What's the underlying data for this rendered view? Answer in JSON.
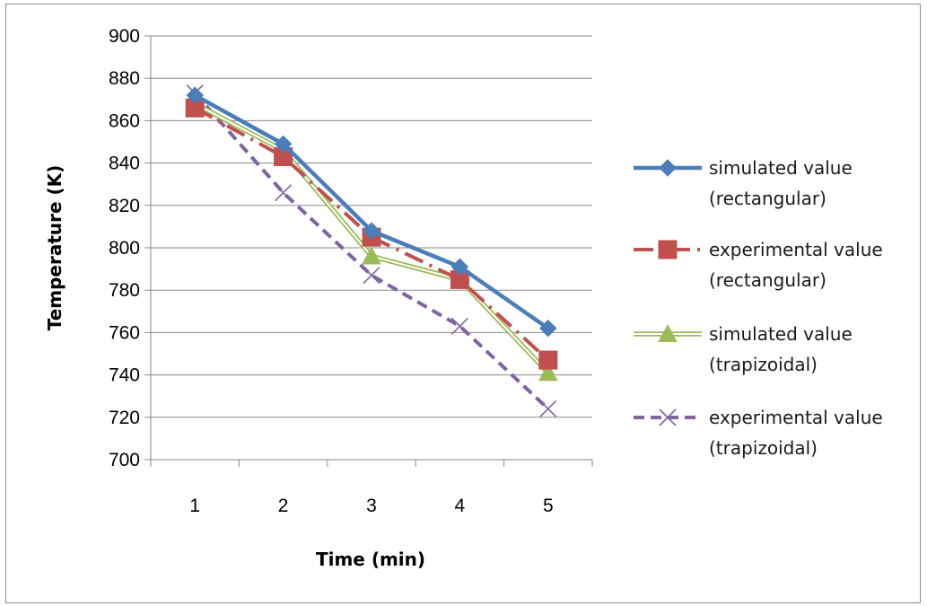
{
  "chart_data": {
    "type": "line",
    "title": "",
    "xlabel": "Time (min)",
    "ylabel": "Temperature (K)",
    "categories": [
      "1",
      "2",
      "3",
      "4",
      "5"
    ],
    "ylim": [
      700,
      900
    ],
    "yticks": [
      700,
      720,
      740,
      760,
      780,
      800,
      820,
      840,
      860,
      880,
      900
    ],
    "grid": "horizontal",
    "legend_position": "right",
    "series": [
      {
        "legend_lines": [
          "simulated value",
          "(rectangular)"
        ],
        "values": [
          872,
          849,
          808,
          791,
          762
        ],
        "color": "#4a7ebb",
        "marker": "diamond",
        "line": "solid"
      },
      {
        "legend_lines": [
          "experimental value",
          "(rectangular)"
        ],
        "values": [
          866,
          843,
          805,
          785,
          747
        ],
        "color": "#c0504d",
        "marker": "square",
        "line": "dash-dot"
      },
      {
        "legend_lines": [
          "simulated value",
          "(trapizoidal)"
        ],
        "values": [
          868,
          846,
          796,
          785,
          741
        ],
        "color": "#9bbb59",
        "marker": "triangle",
        "line": "double"
      },
      {
        "legend_lines": [
          "experimental value",
          "(trapizoidal)"
        ],
        "values": [
          873,
          826,
          787,
          763,
          724
        ],
        "color": "#8064a2",
        "marker": "x",
        "line": "dashed"
      }
    ]
  }
}
